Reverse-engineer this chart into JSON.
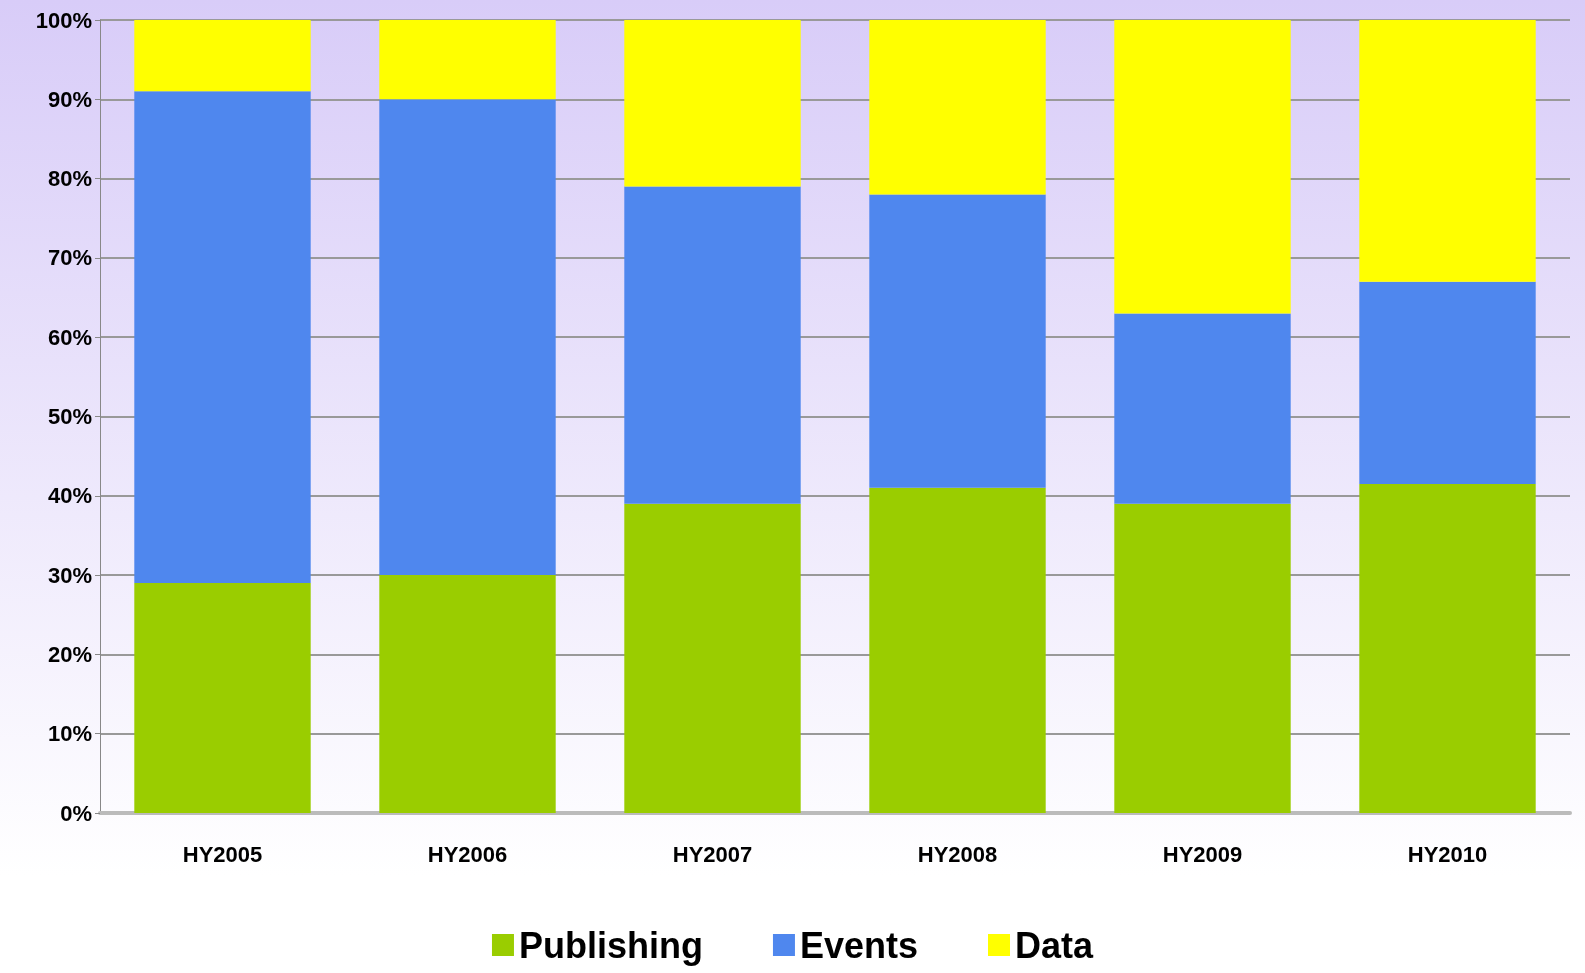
{
  "chart_data": {
    "type": "bar",
    "stacked": true,
    "categories": [
      "HY2005",
      "HY2006",
      "HY2007",
      "HY2008",
      "HY2009",
      "HY2010"
    ],
    "series": [
      {
        "name": "Publishing",
        "color": "#9acd00",
        "values": [
          29,
          30,
          39,
          41,
          39,
          41.5
        ]
      },
      {
        "name": "Events",
        "color": "#4f87ee",
        "values": [
          62,
          60,
          40,
          37,
          24,
          25.5
        ]
      },
      {
        "name": "Data",
        "color": "#ffff00",
        "values": [
          9,
          10,
          21,
          22,
          37,
          33
        ]
      }
    ],
    "ylim": [
      0,
      100
    ],
    "yticks": [
      {
        "value": 0,
        "label": "0%"
      },
      {
        "value": 10,
        "label": "10%"
      },
      {
        "value": 20,
        "label": "20%"
      },
      {
        "value": 30,
        "label": "30%"
      },
      {
        "value": 40,
        "label": "40%"
      },
      {
        "value": 50,
        "label": "50%"
      },
      {
        "value": 60,
        "label": "60%"
      },
      {
        "value": 70,
        "label": "70%"
      },
      {
        "value": 80,
        "label": "80%"
      },
      {
        "value": 90,
        "label": "90%"
      },
      {
        "value": 100,
        "label": "100%"
      }
    ],
    "grid": "y",
    "legend": "bottom"
  }
}
